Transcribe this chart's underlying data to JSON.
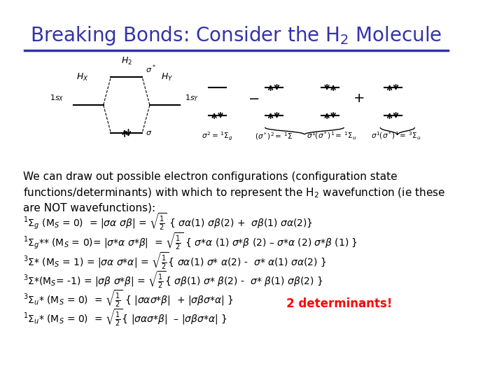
{
  "title": "Breaking Bonds: Consider the H$_2$ Molecule",
  "title_color": "#3333AA",
  "title_fontsize": 20,
  "bg_color": "#FFFFFF",
  "separator_color": "#3333AA",
  "body_text_intro": "We can draw out possible electron configurations (configuration state\nfunctions/determinants) with which to represent the H$_2$ wavefunction (ie these\nare NOT wavefunctions):",
  "body_fontsize": 11,
  "equations": [
    "$^1\\Sigma_g$ (M$_S$ = 0)  = $|\\sigma\\alpha\\ \\sigma\\beta|$ = $\\sqrt{\\frac{1}{2}}$ { $\\sigma\\alpha$(1) $\\sigma\\beta$(2) +  $\\sigma\\beta$(1) $\\sigma\\alpha$(2)}",
    "$^1\\Sigma_g$** (M$_S$ = 0)= $|\\sigma$*$\\alpha\\ \\sigma$*$\\beta|$  = $\\sqrt{\\frac{1}{2}}$ { $\\sigma$*$\\alpha$ (1) $\\sigma$*$\\beta$ (2) – $\\sigma$*$\\alpha$ (2) $\\sigma$*$\\beta$ (1) }",
    "$^3\\Sigma$* (M$_S$ = 1) = $|\\sigma\\alpha\\ \\sigma$*$\\alpha|$ = $\\sqrt{\\frac{1}{2}}${ $\\sigma\\alpha$(1) $\\sigma$* $\\alpha$(2) -  $\\sigma$* $\\alpha$(1) $\\sigma\\alpha$(2) }",
    "$^3\\Sigma$*(M$_S$= -1) = $|\\sigma\\beta\\ \\sigma$*$\\beta|$ = $\\sqrt{\\frac{1}{2}}${ $\\sigma\\beta$(1) $\\sigma$* $\\beta$(2) -  $\\sigma$* $\\beta$(1) $\\sigma\\beta$(2) }",
    "$^3\\Sigma_u$* (M$_S$ = 0)  = $\\sqrt{\\frac{1}{2}}$ { $|\\sigma\\alpha\\sigma$*$\\beta|$  + $|\\sigma\\beta\\sigma$*$\\alpha|$ }",
    "$^1\\Sigma_u$* (M$_S$ = 0)  = $\\sqrt{\\frac{1}{2}}${ $|\\sigma\\alpha\\sigma$*$\\beta|$  – $|\\sigma\\beta\\sigma$*$\\alpha|$ }"
  ],
  "red_note": "2 determinants!",
  "red_note_color": "#FF0000"
}
